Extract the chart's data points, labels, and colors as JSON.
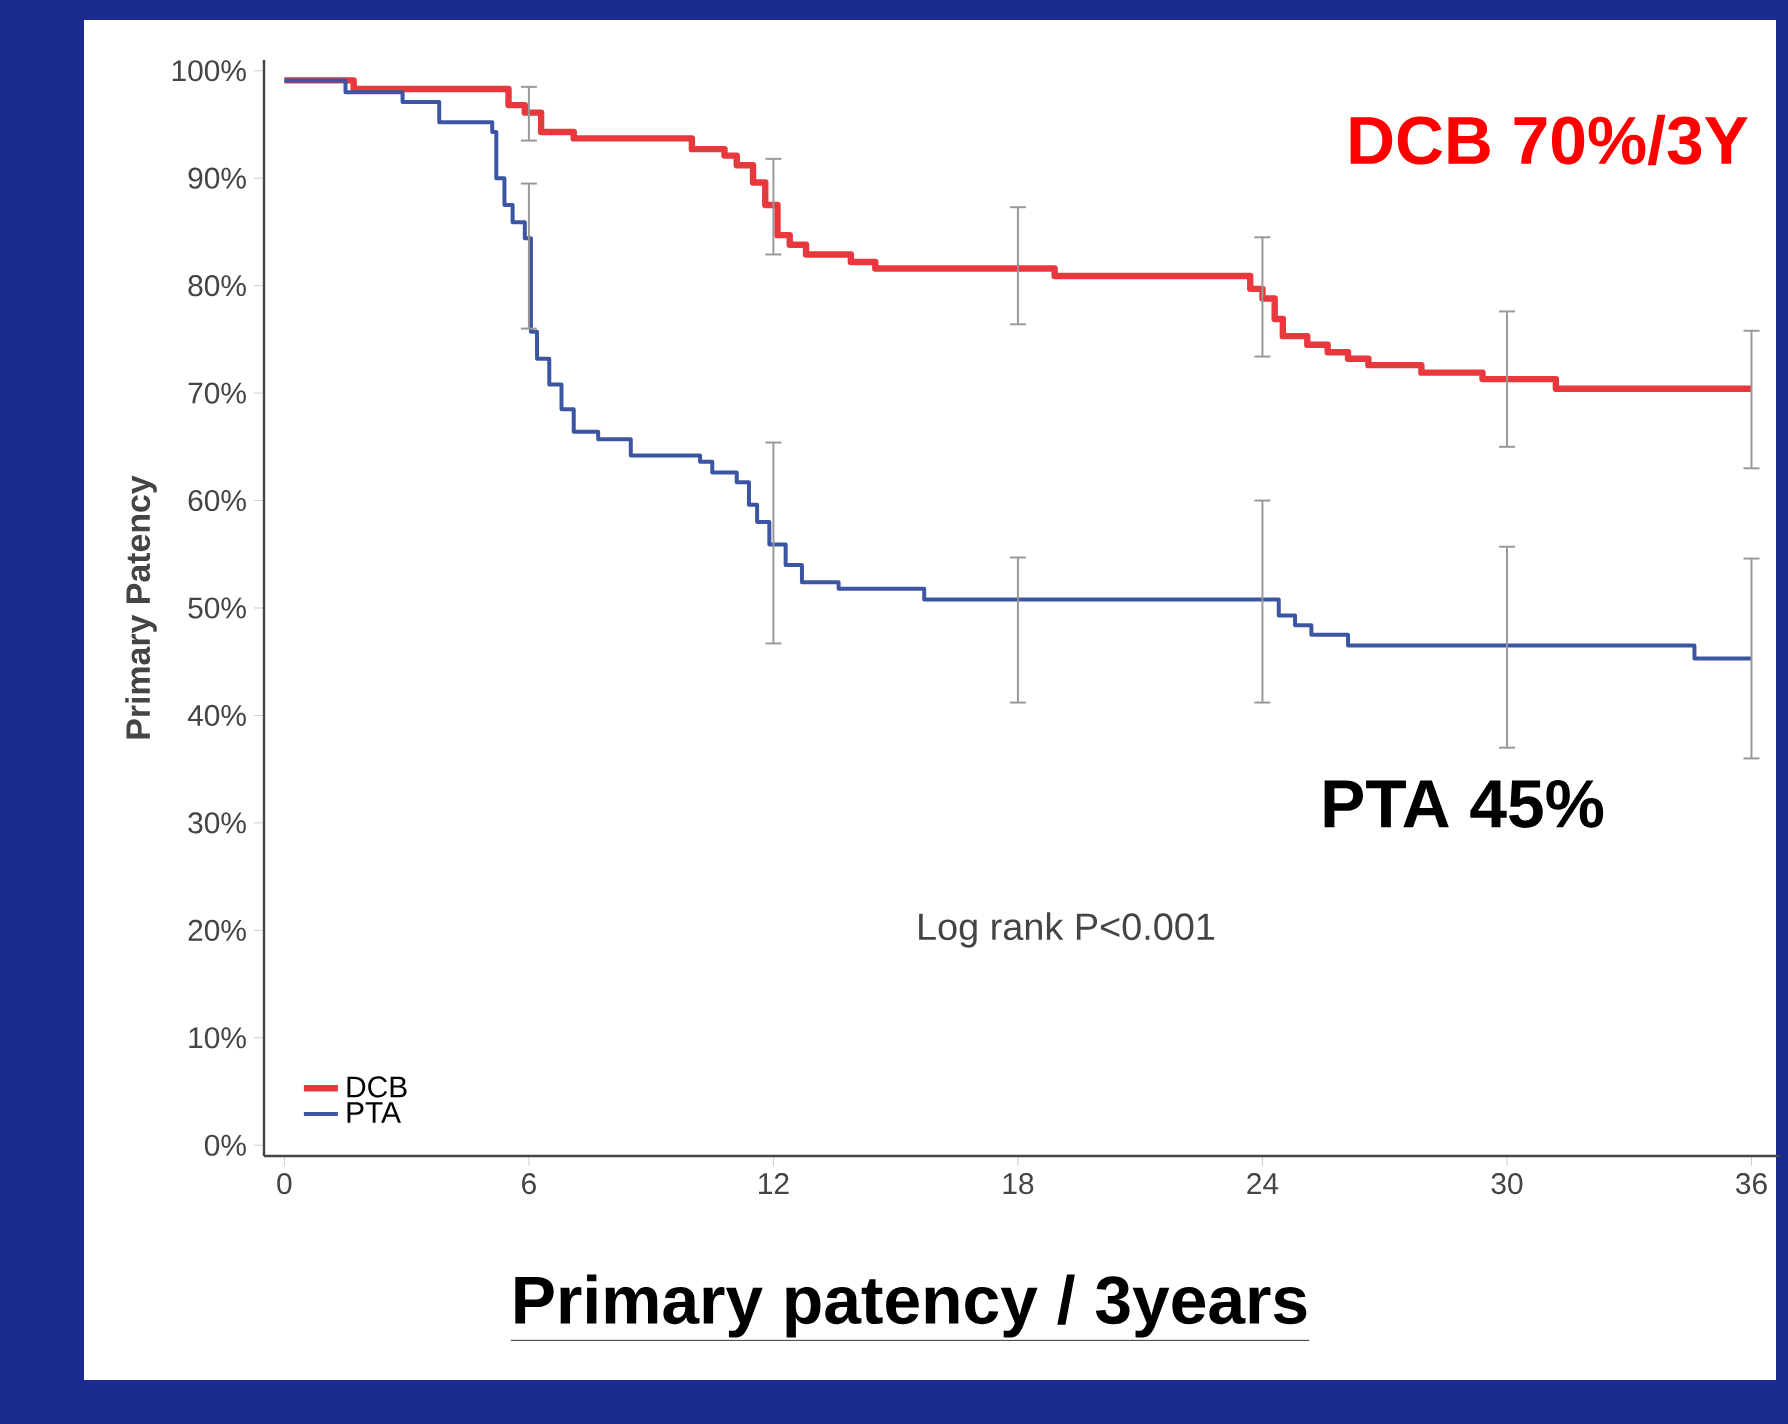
{
  "chart_data": {
    "type": "step",
    "title": "Primary patency / 3years",
    "ylabel": "Primary Patency",
    "annotations": [
      "DCB 70%/3Y",
      "PTA 45%",
      "Log rank P<0.001"
    ],
    "xlim": [
      -0.5,
      36.7
    ],
    "xticks": [
      0,
      6,
      12,
      18,
      24,
      30,
      36
    ],
    "ylim": [
      -1,
      101
    ],
    "yticks": [
      {
        "value": 0,
        "label": "0%"
      },
      {
        "value": 10,
        "label": "10%"
      },
      {
        "value": 20,
        "label": "20%"
      },
      {
        "value": 30,
        "label": "30%"
      },
      {
        "value": 40,
        "label": "40%"
      },
      {
        "value": 50,
        "label": "50%"
      },
      {
        "value": 60,
        "label": "60%"
      },
      {
        "value": 70,
        "label": "70%"
      },
      {
        "value": 80,
        "label": "80%"
      },
      {
        "value": 90,
        "label": "90%"
      },
      {
        "value": 100,
        "label": "100%"
      }
    ],
    "legend": "bottom left",
    "series": [
      {
        "name": "DCB",
        "color": "#e8383d",
        "x": [
          0,
          1.7,
          5.5,
          5.9,
          6,
          6.3,
          7.1,
          10,
          10.8,
          11.1,
          11.5,
          11.8,
          12,
          12.1,
          12.4,
          12.8,
          13.9,
          14.5,
          18,
          18.9,
          23.7,
          24,
          24.3,
          24.5,
          25.1,
          25.6,
          26.1,
          26.6,
          27.9,
          29.4,
          30,
          31.2,
          36
        ],
        "values": [
          99.1,
          98.3,
          96.8,
          96.1,
          96.1,
          94.3,
          93.7,
          92.7,
          92.1,
          91.2,
          89.6,
          87.5,
          87.5,
          84.7,
          83.8,
          82.9,
          82.2,
          81.6,
          81.6,
          80.9,
          79.7,
          78.8,
          76.9,
          75.3,
          74.5,
          73.8,
          73.2,
          72.6,
          71.9,
          71.3,
          71.3,
          70.4,
          70.4
        ],
        "errors": [
          null,
          null,
          null,
          null,
          [
            93.5,
            98.5
          ],
          null,
          null,
          null,
          null,
          null,
          null,
          null,
          [
            82.9,
            91.8
          ],
          null,
          null,
          null,
          null,
          null,
          [
            76.4,
            87.3
          ],
          null,
          null,
          [
            73.4,
            84.5
          ],
          null,
          null,
          null,
          null,
          null,
          null,
          null,
          null,
          [
            65,
            77.6
          ],
          null,
          [
            63,
            75.8
          ]
        ]
      },
      {
        "name": "PTA",
        "color": "#3b55a3",
        "x": [
          0,
          1.5,
          2.9,
          3.8,
          5.1,
          5.2,
          5.4,
          5.6,
          5.9,
          6,
          6.05,
          6.2,
          6.5,
          6.8,
          7.1,
          7.7,
          8.5,
          10.2,
          10.5,
          11.1,
          11.4,
          11.6,
          11.9,
          12,
          12.3,
          12.7,
          13.6,
          15.7,
          18,
          24,
          24.4,
          24.8,
          25.2,
          26.1,
          30,
          34.6,
          36
        ],
        "values": [
          99.1,
          98,
          97.1,
          95.2,
          94.3,
          90,
          87.5,
          85.9,
          84.4,
          84.4,
          75.7,
          73.2,
          70.8,
          68.5,
          66.4,
          65.7,
          64.2,
          63.6,
          62.6,
          61.7,
          59.6,
          58,
          55.9,
          55.9,
          54,
          52.4,
          51.8,
          50.8,
          50.8,
          50.8,
          49.3,
          48.4,
          47.5,
          46.5,
          46.5,
          45.3,
          45.3
        ],
        "errors": [
          null,
          null,
          null,
          null,
          null,
          null,
          null,
          null,
          null,
          [
            76,
            89.5
          ],
          null,
          null,
          null,
          null,
          null,
          null,
          null,
          null,
          null,
          null,
          null,
          null,
          null,
          [
            46.7,
            65.4
          ],
          null,
          null,
          null,
          null,
          [
            41.2,
            54.7
          ],
          [
            41.2,
            60
          ],
          null,
          null,
          null,
          null,
          [
            37,
            55.7
          ],
          null,
          [
            36,
            54.6
          ]
        ]
      }
    ]
  }
}
